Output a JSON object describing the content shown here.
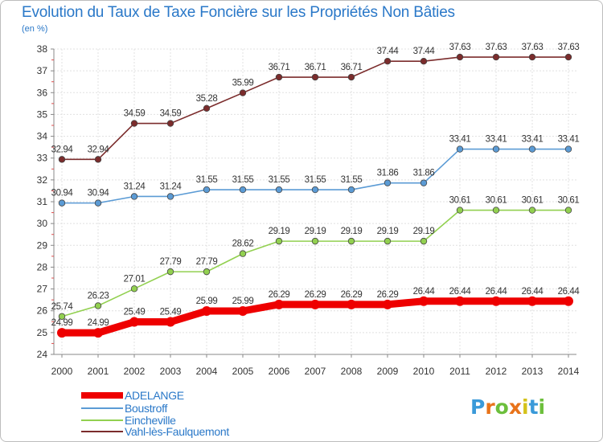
{
  "header": {
    "title": "Evolution du Taux de Taxe Foncière sur les Propriétés Non Bâties",
    "unit": "(en %)"
  },
  "chart_data": {
    "type": "line",
    "title": "Evolution du Taux de Taxe Foncière sur les Propriétés Non Bâties",
    "ylabel": "(en %)",
    "xlabel": "",
    "x": [
      "2000",
      "2001",
      "2002",
      "2003",
      "2004",
      "2005",
      "2006",
      "2007",
      "2008",
      "2009",
      "2010",
      "2011",
      "2012",
      "2013",
      "2014"
    ],
    "ylim": [
      24,
      38
    ],
    "yticks": [
      24,
      25,
      26,
      27,
      28,
      29,
      30,
      31,
      32,
      33,
      34,
      35,
      36,
      37,
      38
    ],
    "grid": true,
    "legend_position": "bottom-left",
    "series": [
      {
        "name": "ADELANGE",
        "color": "#ee0000",
        "values": [
          24.99,
          24.99,
          25.49,
          25.49,
          25.99,
          25.99,
          26.29,
          26.29,
          26.29,
          26.29,
          26.44,
          26.44,
          26.44,
          26.44,
          26.44
        ]
      },
      {
        "name": "Boustroff",
        "color": "#5b9bd5",
        "values": [
          30.94,
          30.94,
          31.24,
          31.24,
          31.55,
          31.55,
          31.55,
          31.55,
          31.55,
          31.86,
          31.86,
          33.41,
          33.41,
          33.41,
          33.41
        ]
      },
      {
        "name": "Eincheville",
        "color": "#92d050",
        "values": [
          25.74,
          26.23,
          27.01,
          27.79,
          27.79,
          28.62,
          29.19,
          29.19,
          29.19,
          29.19,
          29.19,
          30.61,
          30.61,
          30.61,
          30.61
        ]
      },
      {
        "name": "Vahl-lès-Faulquemont",
        "color": "#7b2c2c",
        "values": [
          32.94,
          32.94,
          34.59,
          34.59,
          35.28,
          35.99,
          36.71,
          36.71,
          36.71,
          37.44,
          37.44,
          37.63,
          37.63,
          37.63,
          37.63
        ]
      }
    ],
    "point_labels": {
      "ADELANGE": [
        "24.99",
        "24.99",
        "25.49",
        "25.49",
        "25.99",
        "25.99",
        "26.29",
        "26.29",
        "26.29",
        "26.29",
        "26.44",
        "26.44",
        "26.44",
        "26.44",
        "26.44"
      ],
      "Boustroff": [
        "30.94",
        "30.94",
        "31.24",
        "31.24",
        "31.55",
        "31.55",
        "31.55",
        "31.55",
        "31.55",
        "31.86",
        "31.86",
        "33.41",
        "33.41",
        "33.41",
        "33.41"
      ],
      "Eincheville": [
        "25.74",
        "26.23",
        "27.01",
        "27.79",
        "27.79",
        "28.62",
        "29.19",
        "29.19",
        "29.19",
        "29.19",
        "29.19",
        "30.61",
        "30.61",
        "30.61",
        "30.61"
      ],
      "Vahl-lès-Faulquemont": [
        "32.94",
        "32.94",
        "34.59",
        "34.59",
        "35.28",
        "35.99",
        "36.71",
        "36.71",
        "36.71",
        "37.44",
        "37.44",
        "37.63",
        "37.63",
        "37.63",
        "37.63"
      ]
    }
  },
  "legend": {
    "items": [
      {
        "label": "ADELANGE",
        "color": "#ee0000"
      },
      {
        "label": "Boustroff",
        "color": "#5b9bd5"
      },
      {
        "label": "Eincheville",
        "color": "#92d050"
      },
      {
        "label": "Vahl-lès-Faulquemont",
        "color": "#7b2c2c"
      }
    ]
  },
  "logo": {
    "letters": [
      "P",
      "r",
      "o",
      "x",
      "i",
      "t",
      "i"
    ],
    "colors": [
      "#3a9ad9",
      "#e8731a",
      "#6cbf3c",
      "#e8731a",
      "#d4c21a",
      "#3a9ad9",
      "#6cbf3c"
    ]
  },
  "style": {
    "axis_color": "#888888",
    "grid_color": "#e0e0e0",
    "tick_label_color": "#333333",
    "point_label_color": "#333333",
    "title_color": "#2a78c8"
  }
}
